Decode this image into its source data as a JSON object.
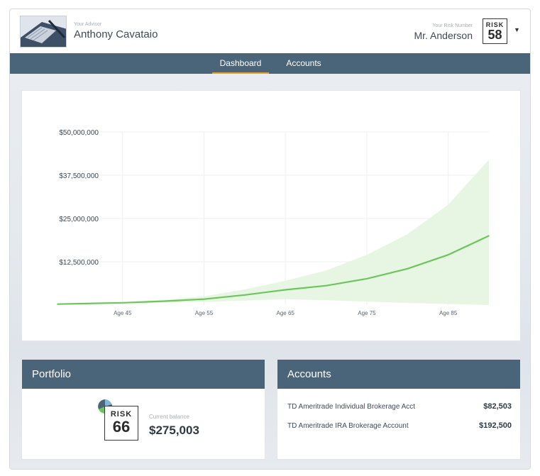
{
  "header": {
    "advisor_label": "Your Advisor",
    "advisor_name": "Anthony Cavataio",
    "client_label": "Your Risk Number",
    "client_name": "Mr. Anderson",
    "risk_label": "RISK",
    "risk_number": "58"
  },
  "nav": {
    "tabs": [
      {
        "label": "Dashboard",
        "active": true
      },
      {
        "label": "Accounts",
        "active": false
      }
    ]
  },
  "chart_data": {
    "type": "area",
    "title": "",
    "xlabel": "",
    "ylabel": "",
    "x_tick_labels": [
      "Age 45",
      "Age 55",
      "Age 65",
      "Age 75",
      "Age 85"
    ],
    "y_tick_labels": [
      "$12,500,000",
      "$25,000,000",
      "$37,500,000",
      "$50,000,000"
    ],
    "xlim": [
      37,
      90
    ],
    "ylim": [
      0,
      50000000
    ],
    "series": [
      {
        "x": [
          37,
          40,
          45,
          50,
          55,
          60,
          65,
          70,
          75,
          80,
          85,
          90
        ],
        "values": [
          275003,
          400000,
          650000,
          1100000,
          1700000,
          2900000,
          4400000,
          5600000,
          7600000,
          10500000,
          14500000,
          20000000
        ],
        "band_upper": [
          275003,
          450000,
          800000,
          1500000,
          2500000,
          4500000,
          7000000,
          10000000,
          14500000,
          20500000,
          29000000,
          42000000
        ],
        "band_lower": [
          275003,
          350000,
          500000,
          700000,
          900000,
          1300000,
          1700000,
          1400000,
          1000000,
          600000,
          300000,
          0
        ]
      }
    ],
    "line_color": "#6cc65c",
    "band_color": "#e7f6e3",
    "grid": true
  },
  "portfolio": {
    "title": "Portfolio",
    "risk_label": "RISK",
    "risk_number": "66",
    "balance_label": "Current balance",
    "balance_value": "$275,003"
  },
  "accounts": {
    "title": "Accounts",
    "items": [
      {
        "name": "TD Ameritrade Individual Brokerage Acct",
        "value": "$82,503"
      },
      {
        "name": "TD Ameritrade IRA Brokerage Account",
        "value": "$192,500"
      }
    ]
  },
  "colors": {
    "nav": "#4a6579",
    "accent": "#e3a32b",
    "line": "#6cc65c"
  }
}
